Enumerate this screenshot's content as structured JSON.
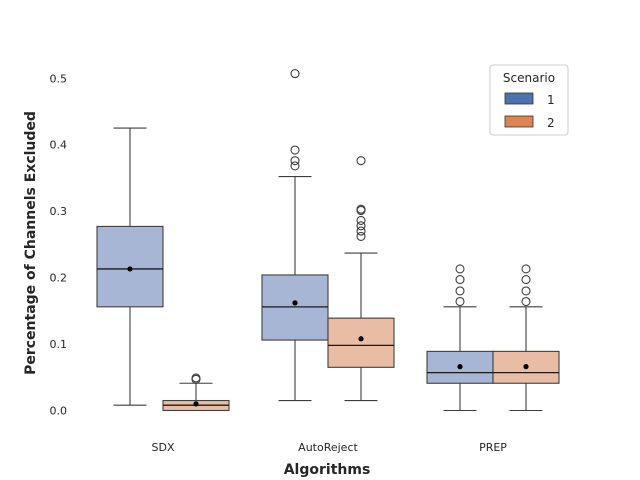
{
  "chart_data": {
    "type": "box",
    "xlabel": "Algorithms",
    "ylabel": "Percentage of Channels Excluded",
    "ylim": [
      -0.03,
      0.54
    ],
    "yticks": [
      0.0,
      0.1,
      0.2,
      0.3,
      0.4,
      0.5
    ],
    "ytick_labels": [
      "0.0",
      "0.1",
      "0.2",
      "0.3",
      "0.4",
      "0.5"
    ],
    "categories": [
      "SDX",
      "AutoReject",
      "PREP"
    ],
    "legend": {
      "title": "Scenario",
      "position": "top-right",
      "entries": [
        "1",
        "2"
      ]
    },
    "series": [
      {
        "name": "1",
        "color": "#a6b6d4",
        "legend_color": "#4c72b0",
        "boxes": [
          {
            "category": "SDX",
            "whisker_low": 0.008,
            "q1": 0.156,
            "median": 0.213,
            "q3": 0.277,
            "whisker_high": 0.425,
            "mean": 0.213,
            "outliers": []
          },
          {
            "category": "AutoReject",
            "whisker_low": 0.015,
            "q1": 0.106,
            "median": 0.156,
            "q3": 0.204,
            "whisker_high": 0.352,
            "mean": 0.162,
            "outliers": [
              0.368,
              0.376,
              0.392,
              0.507
            ]
          },
          {
            "category": "PREP",
            "whisker_low": 0.0,
            "q1": 0.041,
            "median": 0.057,
            "q3": 0.089,
            "whisker_high": 0.156,
            "mean": 0.066,
            "outliers": [
              0.164,
              0.18,
              0.197,
              0.213
            ]
          }
        ]
      },
      {
        "name": "2",
        "color": "#e8bda4",
        "legend_color": "#dd8452",
        "boxes": [
          {
            "category": "SDX",
            "whisker_low": 0.0,
            "q1": 0.0,
            "median": 0.008,
            "q3": 0.015,
            "whisker_high": 0.041,
            "mean": 0.01,
            "outliers": [
              0.047,
              0.049
            ]
          },
          {
            "category": "AutoReject",
            "whisker_low": 0.015,
            "q1": 0.065,
            "median": 0.098,
            "q3": 0.139,
            "whisker_high": 0.237,
            "mean": 0.108,
            "outliers": [
              0.262,
              0.27,
              0.278,
              0.286,
              0.301,
              0.303,
              0.376
            ]
          },
          {
            "category": "PREP",
            "whisker_low": 0.0,
            "q1": 0.041,
            "median": 0.057,
            "q3": 0.089,
            "whisker_high": 0.156,
            "mean": 0.066,
            "outliers": [
              0.164,
              0.18,
              0.197,
              0.213
            ]
          }
        ]
      }
    ]
  }
}
